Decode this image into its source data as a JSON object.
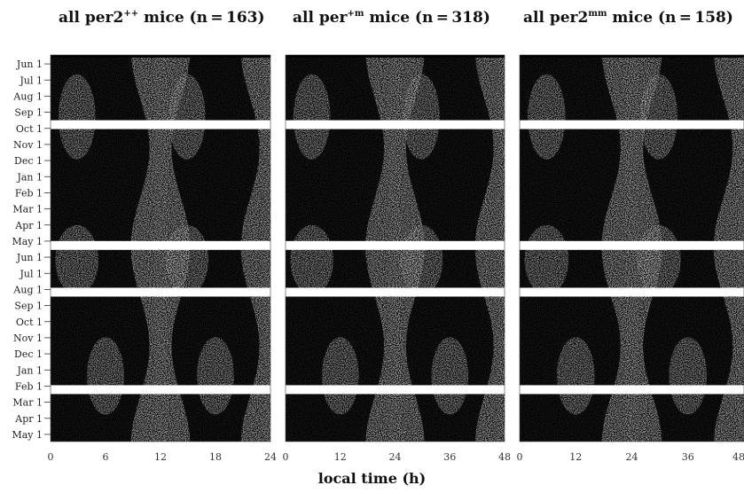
{
  "chart_data": {
    "type": "heatmap",
    "subtype": "double-plotted actogram",
    "xlabel": "local time (h)",
    "panels": [
      {
        "title_prefix": "all per2",
        "title_sup": "++",
        "title_suffix": " mice (n = 163)",
        "xticks": [
          "0",
          "6",
          "12",
          "18",
          "24"
        ],
        "xlim": [
          0,
          24
        ]
      },
      {
        "title_prefix": "all per",
        "title_sup": "+m",
        "title_suffix": " mice (n = 318)",
        "xticks": [
          "0",
          "12",
          "24",
          "36",
          "48"
        ],
        "xlim": [
          0,
          48
        ]
      },
      {
        "title_prefix": "all per2",
        "title_sup": "mm",
        "title_suffix": " mice (n = 158)",
        "xticks": [
          "0",
          "12",
          "24",
          "36",
          "48"
        ],
        "xlim": [
          0,
          48
        ]
      }
    ],
    "yticks": [
      "Jun 1",
      "Jul 1",
      "Aug 1",
      "Sep 1",
      "Oct 1",
      "Nov 1",
      "Dec 1",
      "Jan 1",
      "Feb 1",
      "Mar 1",
      "Apr 1",
      "May 1",
      "Jun 1",
      "Jul 1",
      "Aug 1",
      "Sep 1",
      "Oct 1",
      "Nov 1",
      "Dec 1",
      "Jan 1",
      "Feb 1",
      "Mar 1",
      "Apr 1",
      "May 1"
    ],
    "activity_color": "#000000",
    "light_shading_color": "#b9b9b9",
    "background": "#ffffff"
  }
}
